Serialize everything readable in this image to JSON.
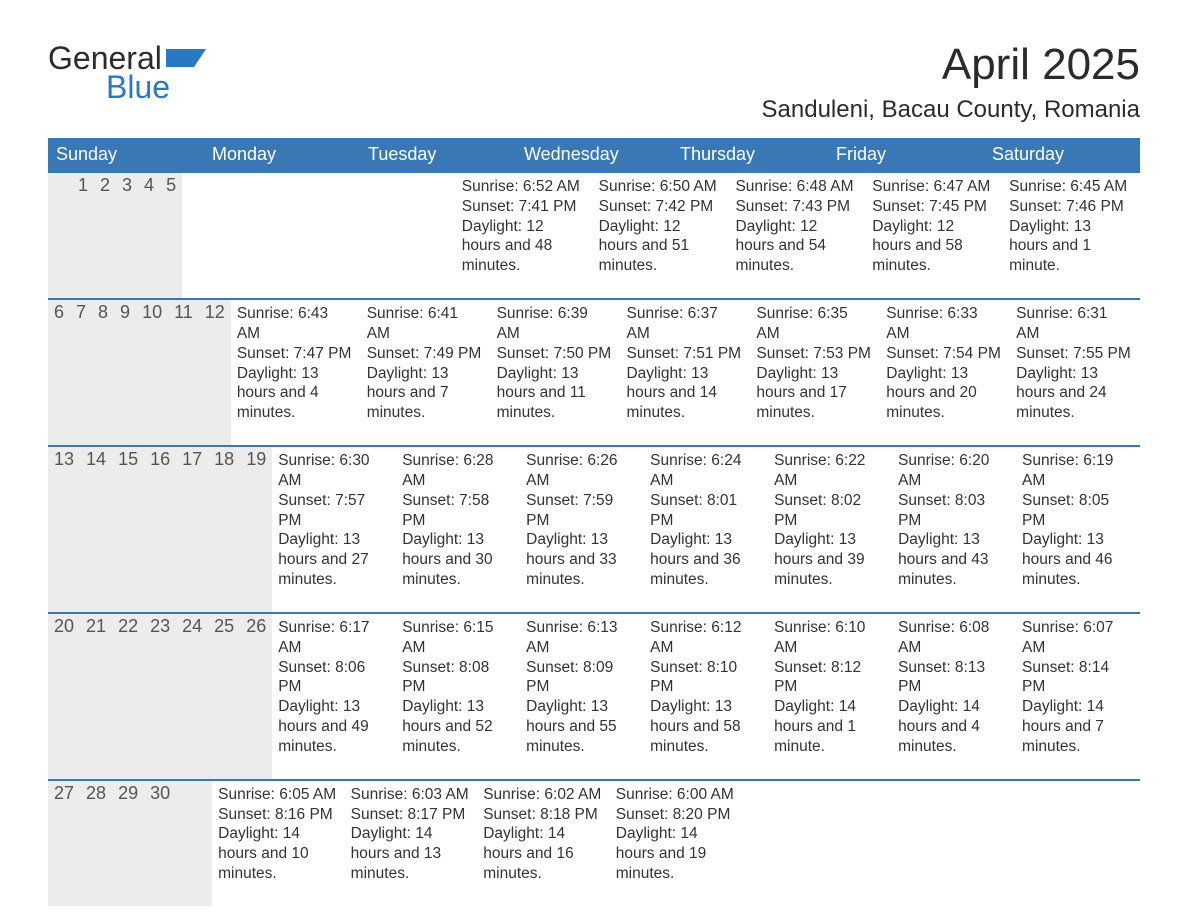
{
  "brand": {
    "word1": "General",
    "word2": "Blue",
    "flag_color": "#2b78c2",
    "text_color": "#2b2b2b"
  },
  "title": "April 2025",
  "location": "Sanduleni, Bacau County, Romania",
  "header_bg": "#3a78b5",
  "daynum_bg": "#ececec",
  "page_bg": "#ffffff",
  "text_color": "#333333",
  "weekdays": [
    "Sunday",
    "Monday",
    "Tuesday",
    "Wednesday",
    "Thursday",
    "Friday",
    "Saturday"
  ],
  "weeks": [
    {
      "nums": [
        "",
        "",
        "1",
        "2",
        "3",
        "4",
        "5"
      ],
      "cells": [
        null,
        null,
        {
          "sunrise": "6:52 AM",
          "sunset": "7:41 PM",
          "daylight": "12 hours and 48 minutes."
        },
        {
          "sunrise": "6:50 AM",
          "sunset": "7:42 PM",
          "daylight": "12 hours and 51 minutes."
        },
        {
          "sunrise": "6:48 AM",
          "sunset": "7:43 PM",
          "daylight": "12 hours and 54 minutes."
        },
        {
          "sunrise": "6:47 AM",
          "sunset": "7:45 PM",
          "daylight": "12 hours and 58 minutes."
        },
        {
          "sunrise": "6:45 AM",
          "sunset": "7:46 PM",
          "daylight": "13 hours and 1 minute."
        }
      ]
    },
    {
      "nums": [
        "6",
        "7",
        "8",
        "9",
        "10",
        "11",
        "12"
      ],
      "cells": [
        {
          "sunrise": "6:43 AM",
          "sunset": "7:47 PM",
          "daylight": "13 hours and 4 minutes."
        },
        {
          "sunrise": "6:41 AM",
          "sunset": "7:49 PM",
          "daylight": "13 hours and 7 minutes."
        },
        {
          "sunrise": "6:39 AM",
          "sunset": "7:50 PM",
          "daylight": "13 hours and 11 minutes."
        },
        {
          "sunrise": "6:37 AM",
          "sunset": "7:51 PM",
          "daylight": "13 hours and 14 minutes."
        },
        {
          "sunrise": "6:35 AM",
          "sunset": "7:53 PM",
          "daylight": "13 hours and 17 minutes."
        },
        {
          "sunrise": "6:33 AM",
          "sunset": "7:54 PM",
          "daylight": "13 hours and 20 minutes."
        },
        {
          "sunrise": "6:31 AM",
          "sunset": "7:55 PM",
          "daylight": "13 hours and 24 minutes."
        }
      ]
    },
    {
      "nums": [
        "13",
        "14",
        "15",
        "16",
        "17",
        "18",
        "19"
      ],
      "cells": [
        {
          "sunrise": "6:30 AM",
          "sunset": "7:57 PM",
          "daylight": "13 hours and 27 minutes."
        },
        {
          "sunrise": "6:28 AM",
          "sunset": "7:58 PM",
          "daylight": "13 hours and 30 minutes."
        },
        {
          "sunrise": "6:26 AM",
          "sunset": "7:59 PM",
          "daylight": "13 hours and 33 minutes."
        },
        {
          "sunrise": "6:24 AM",
          "sunset": "8:01 PM",
          "daylight": "13 hours and 36 minutes."
        },
        {
          "sunrise": "6:22 AM",
          "sunset": "8:02 PM",
          "daylight": "13 hours and 39 minutes."
        },
        {
          "sunrise": "6:20 AM",
          "sunset": "8:03 PM",
          "daylight": "13 hours and 43 minutes."
        },
        {
          "sunrise": "6:19 AM",
          "sunset": "8:05 PM",
          "daylight": "13 hours and 46 minutes."
        }
      ]
    },
    {
      "nums": [
        "20",
        "21",
        "22",
        "23",
        "24",
        "25",
        "26"
      ],
      "cells": [
        {
          "sunrise": "6:17 AM",
          "sunset": "8:06 PM",
          "daylight": "13 hours and 49 minutes."
        },
        {
          "sunrise": "6:15 AM",
          "sunset": "8:08 PM",
          "daylight": "13 hours and 52 minutes."
        },
        {
          "sunrise": "6:13 AM",
          "sunset": "8:09 PM",
          "daylight": "13 hours and 55 minutes."
        },
        {
          "sunrise": "6:12 AM",
          "sunset": "8:10 PM",
          "daylight": "13 hours and 58 minutes."
        },
        {
          "sunrise": "6:10 AM",
          "sunset": "8:12 PM",
          "daylight": "14 hours and 1 minute."
        },
        {
          "sunrise": "6:08 AM",
          "sunset": "8:13 PM",
          "daylight": "14 hours and 4 minutes."
        },
        {
          "sunrise": "6:07 AM",
          "sunset": "8:14 PM",
          "daylight": "14 hours and 7 minutes."
        }
      ]
    },
    {
      "nums": [
        "27",
        "28",
        "29",
        "30",
        "",
        "",
        ""
      ],
      "cells": [
        {
          "sunrise": "6:05 AM",
          "sunset": "8:16 PM",
          "daylight": "14 hours and 10 minutes."
        },
        {
          "sunrise": "6:03 AM",
          "sunset": "8:17 PM",
          "daylight": "14 hours and 13 minutes."
        },
        {
          "sunrise": "6:02 AM",
          "sunset": "8:18 PM",
          "daylight": "14 hours and 16 minutes."
        },
        {
          "sunrise": "6:00 AM",
          "sunset": "8:20 PM",
          "daylight": "14 hours and 19 minutes."
        },
        null,
        null,
        null
      ]
    }
  ],
  "labels": {
    "sunrise": "Sunrise: ",
    "sunset": "Sunset: ",
    "daylight": "Daylight: "
  }
}
